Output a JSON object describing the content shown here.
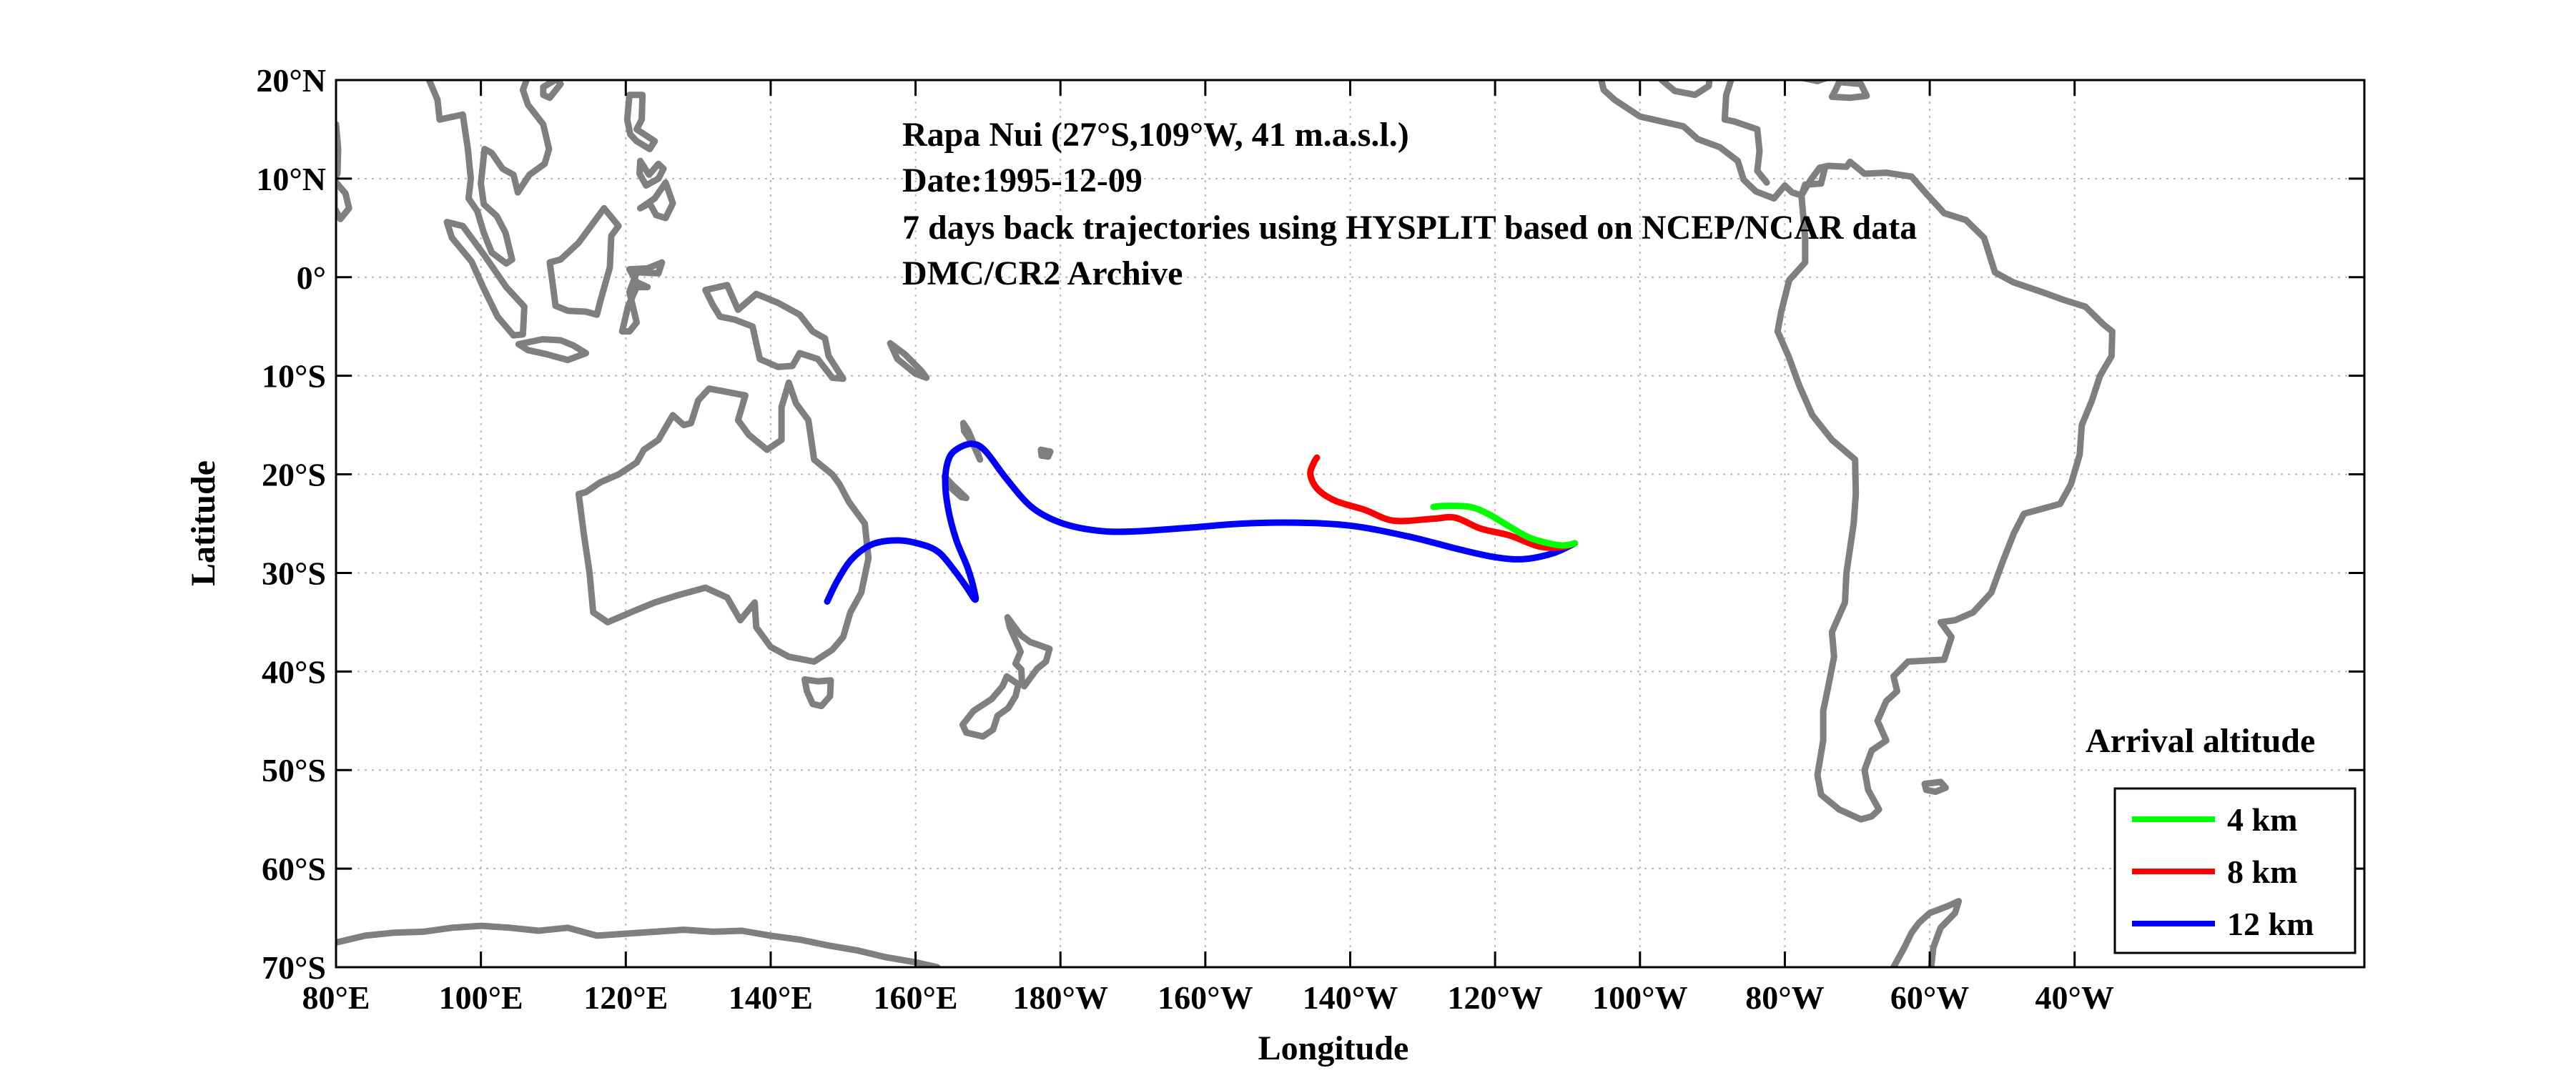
{
  "map": {
    "title_lines": [
      "Rapa Nui (27°S,109°W, 41 m.a.s.l.)",
      "Date:1995-12-09",
      "7 days back trajectories using HYSPLIT based on NCEP/NCAR data",
      "DMC/CR2 Archive"
    ],
    "xlabel": "Longitude",
    "ylabel": "Latitude",
    "xlim_deg_east": [
      80,
      360
    ],
    "ylim_deg": [
      -70,
      20
    ],
    "xticks": [
      {
        "value": 80,
        "label": "80°E"
      },
      {
        "value": 100,
        "label": "100°E"
      },
      {
        "value": 120,
        "label": "120°E"
      },
      {
        "value": 140,
        "label": "140°E"
      },
      {
        "value": 160,
        "label": "160°E"
      },
      {
        "value": 180,
        "label": "180°W"
      },
      {
        "value": 200,
        "label": "160°W"
      },
      {
        "value": 220,
        "label": "140°W"
      },
      {
        "value": 240,
        "label": "120°W"
      },
      {
        "value": 260,
        "label": "100°W"
      },
      {
        "value": 280,
        "label": "80°W"
      },
      {
        "value": 300,
        "label": "60°W"
      },
      {
        "value": 320,
        "label": "40°W"
      }
    ],
    "yticks": [
      {
        "value": 20,
        "label": "20°N"
      },
      {
        "value": 10,
        "label": "10°N"
      },
      {
        "value": 0,
        "label": "0°"
      },
      {
        "value": -10,
        "label": "10°S"
      },
      {
        "value": -20,
        "label": "20°S"
      },
      {
        "value": -30,
        "label": "30°S"
      },
      {
        "value": -40,
        "label": "40°S"
      },
      {
        "value": -50,
        "label": "50°S"
      },
      {
        "value": -60,
        "label": "60°S"
      },
      {
        "value": -70,
        "label": "70°S"
      }
    ],
    "grid": true,
    "legend": {
      "title": "Arrival altitude",
      "placement": "bottom-right",
      "entries": [
        {
          "label": "4 km",
          "color": "#00ff00"
        },
        {
          "label": "8 km",
          "color": "#ff0000"
        },
        {
          "label": "12 km",
          "color": "#0000ff"
        }
      ]
    },
    "coastline_color": "#7f7f7f",
    "trajectories": [
      {
        "arrival_altitude": "4 km",
        "color": "#00ff00",
        "points": [
          [
            251,
            -27
          ],
          [
            249,
            -27.2
          ],
          [
            245,
            -26.5
          ],
          [
            242,
            -25.3
          ],
          [
            239,
            -24
          ],
          [
            236.5,
            -23.3
          ],
          [
            233,
            -23.2
          ],
          [
            231.5,
            -23.3
          ]
        ]
      },
      {
        "arrival_altitude": "8 km",
        "color": "#ff0000",
        "points": [
          [
            251,
            -27
          ],
          [
            249,
            -27.4
          ],
          [
            246,
            -27.3
          ],
          [
            242,
            -26.2
          ],
          [
            238,
            -25.5
          ],
          [
            234.5,
            -24.4
          ],
          [
            231.5,
            -24.5
          ],
          [
            226,
            -24.7
          ],
          [
            222,
            -23.6
          ],
          [
            218,
            -22.7
          ],
          [
            215.5,
            -21.5
          ],
          [
            214.5,
            -20
          ],
          [
            215,
            -18.8
          ],
          [
            215.4,
            -18.3
          ]
        ]
      },
      {
        "arrival_altitude": "12 km",
        "color": "#0000ff",
        "points": [
          [
            251,
            -27
          ],
          [
            248,
            -28
          ],
          [
            244,
            -28.6
          ],
          [
            240,
            -28.4
          ],
          [
            235,
            -27.6
          ],
          [
            228,
            -26.3
          ],
          [
            220,
            -25.2
          ],
          [
            212,
            -24.9
          ],
          [
            205,
            -25
          ],
          [
            198,
            -25.4
          ],
          [
            190,
            -25.8
          ],
          [
            185,
            -25.7
          ],
          [
            180,
            -24.9
          ],
          [
            176,
            -23.3
          ],
          [
            172.5,
            -20.4
          ],
          [
            169.6,
            -17.6
          ],
          [
            167.8,
            -16.9
          ],
          [
            165.8,
            -17.4
          ],
          [
            164.6,
            -18.4
          ],
          [
            164.1,
            -20.6
          ],
          [
            164.5,
            -23.5
          ],
          [
            165.6,
            -26.6
          ],
          [
            167.2,
            -29.5
          ],
          [
            168.1,
            -31.8
          ],
          [
            168.2,
            -32.7
          ],
          [
            166.9,
            -31.3
          ],
          [
            165.2,
            -29.6
          ],
          [
            163.2,
            -27.9
          ],
          [
            160.8,
            -27.1
          ],
          [
            157.5,
            -26.7
          ],
          [
            154,
            -27.1
          ],
          [
            151.2,
            -28.6
          ],
          [
            149.2,
            -30.8
          ],
          [
            147.8,
            -32.9
          ]
        ]
      }
    ]
  }
}
